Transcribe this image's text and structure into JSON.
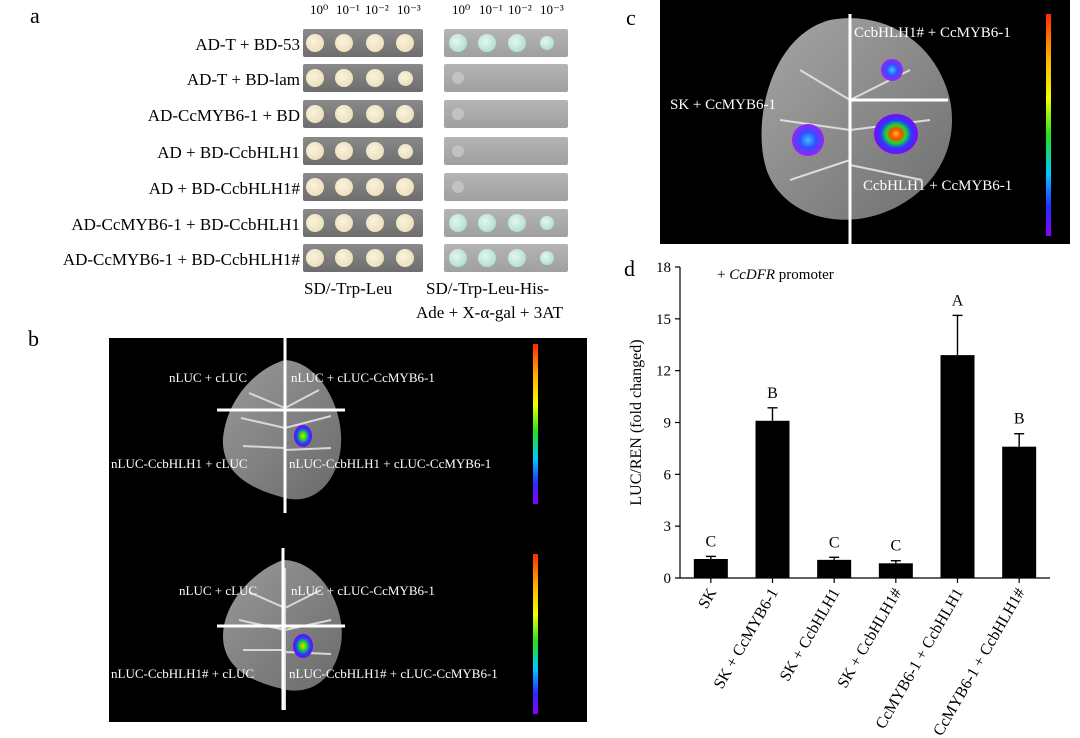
{
  "panel_a": {
    "letter": "a",
    "dilutions": [
      "10⁰",
      "10⁻¹",
      "10⁻²",
      "10⁻³"
    ],
    "rows": [
      "AD-T + BD-53",
      "AD-T + BD-lam",
      "AD-CcMYB6-1 + BD",
      "AD + BD-CcbHLH1",
      "AD + BD-CcbHLH1#",
      "AD-CcMYB6-1 + BD-CcbHLH1",
      "AD-CcMYB6-1 + BD-CcbHLH1#"
    ],
    "condition_left": "SD/-Trp-Leu",
    "condition_right_line1": "SD/-Trp-Leu-His-",
    "condition_right_line2": "Ade + X-α-gal + 3AT"
  },
  "panel_b": {
    "letter": "b",
    "top": {
      "tl": "nLUC + cLUC",
      "tr": "nLUC + cLUC-CcMYB6-1",
      "bl": "nLUC-CcbHLH1 + cLUC",
      "br": "nLUC-CcbHLH1 + cLUC-CcMYB6-1"
    },
    "bottom": {
      "tl": "nLUC + cLUC",
      "tr": "nLUC + cLUC-CcMYB6-1",
      "bl": "nLUC-CcbHLH1# + cLUC",
      "br": "nLUC-CcbHLH1# + cLUC-CcMYB6-1"
    }
  },
  "panel_c": {
    "letter": "c",
    "tr": "CcbHLH1# + CcMYB6-1",
    "l": "SK + CcMYB6-1",
    "br": "CcbHLH1 + CcMYB6-1"
  },
  "panel_d": {
    "letter": "d"
  },
  "chart_data": {
    "type": "bar",
    "annotation_prefix": "+ ",
    "annotation_italic": "CcDFR",
    "annotation_suffix": " promoter",
    "ylabel": "LUC/REN (fold changed)",
    "xlabel": "",
    "ylim": [
      0,
      18
    ],
    "yticks": [
      0,
      3,
      6,
      9,
      12,
      15,
      18
    ],
    "categories": [
      "SK",
      "SK + CcMYB6-1",
      "SK + CcbHLH1",
      "SK + CcbHLH1#",
      "CcMYB6-1 + CcbHLH1",
      "CcMYB6-1 + CcbHLH1#"
    ],
    "values": [
      1.1,
      9.1,
      1.05,
      0.85,
      12.9,
      7.6
    ],
    "errors": [
      0.15,
      0.75,
      0.15,
      0.15,
      2.3,
      0.75
    ],
    "significance": [
      "C",
      "B",
      "C",
      "C",
      "A",
      "B"
    ],
    "bar_color": "#000000"
  }
}
